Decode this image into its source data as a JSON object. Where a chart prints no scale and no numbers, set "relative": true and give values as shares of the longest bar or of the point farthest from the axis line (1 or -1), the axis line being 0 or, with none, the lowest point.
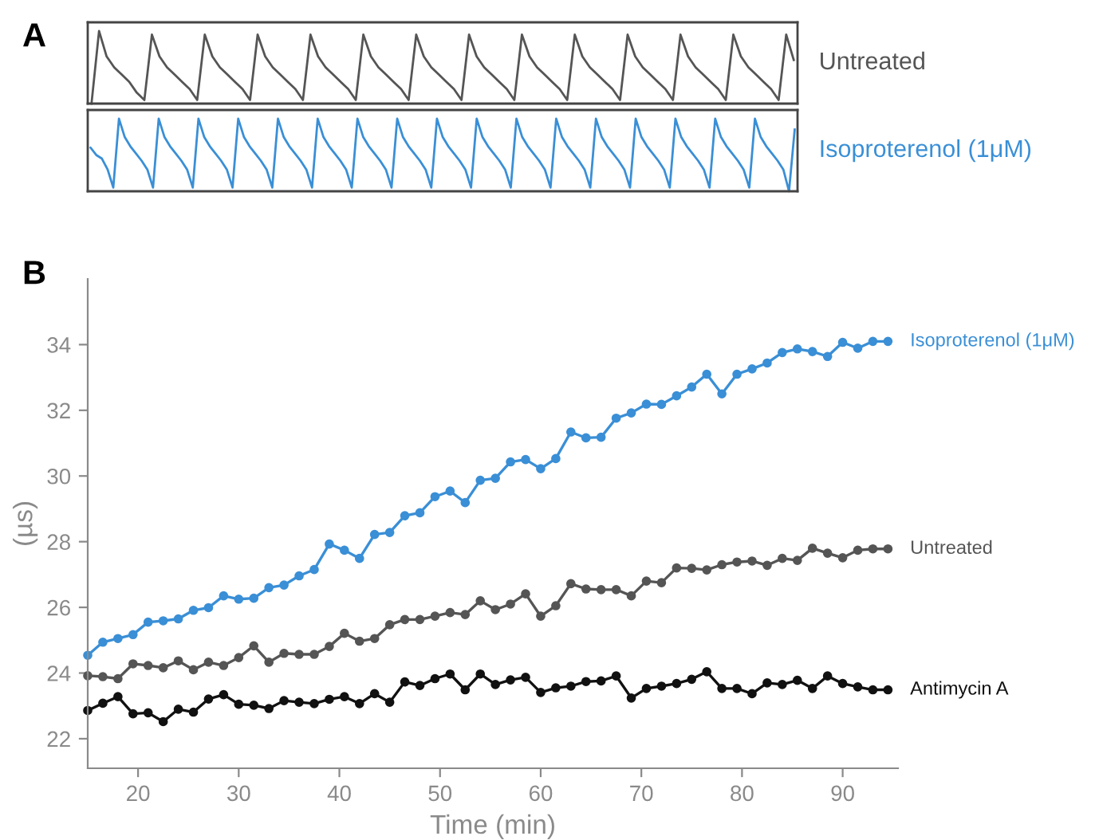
{
  "chart_data": [
    {
      "type": "line",
      "title": "A",
      "relative": true,
      "marker": "none",
      "categories": [
        null,
        null,
        null,
        null,
        null,
        null,
        null,
        null,
        null,
        null,
        null,
        null,
        null,
        null,
        null,
        null,
        null,
        null,
        null,
        null,
        null,
        null,
        null,
        null,
        null,
        null,
        null,
        null,
        null,
        null,
        null,
        null,
        null,
        null,
        null,
        null,
        null,
        null,
        null,
        null,
        null,
        null,
        null,
        null,
        null,
        null,
        null,
        null,
        null,
        null,
        null,
        null,
        null,
        null,
        null,
        null,
        null,
        null,
        null,
        null,
        null,
        null,
        null,
        null,
        null,
        null,
        null,
        null,
        null,
        null,
        null,
        null,
        null,
        null,
        null,
        null,
        null,
        null,
        null,
        null,
        null,
        null,
        null,
        null,
        null,
        null,
        null,
        null,
        null,
        null,
        null,
        null,
        null,
        null
      ],
      "series": [
        {
          "name": "Untreated",
          "color": "#555555",
          "values": [
            0.0,
            1.0,
            0.65,
            0.5,
            0.4,
            0.3,
            0.15,
            0.05,
            0.95,
            0.65,
            0.5,
            0.4,
            0.3,
            0.2,
            0.05,
            0.95,
            0.65,
            0.5,
            0.4,
            0.3,
            0.2,
            0.05,
            0.95,
            0.65,
            0.5,
            0.4,
            0.3,
            0.2,
            0.05,
            0.95,
            0.65,
            0.5,
            0.4,
            0.3,
            0.2,
            0.05,
            0.95,
            0.65,
            0.5,
            0.4,
            0.3,
            0.2,
            0.05,
            0.95,
            0.65,
            0.5,
            0.4,
            0.3,
            0.2,
            0.05,
            0.95,
            0.65,
            0.5,
            0.4,
            0.3,
            0.2,
            0.05,
            0.95,
            0.65,
            0.5,
            0.4,
            0.3,
            0.2,
            0.05,
            0.95,
            0.65,
            0.5,
            0.4,
            0.3,
            0.2,
            0.05,
            0.95,
            0.65,
            0.5,
            0.4,
            0.3,
            0.2,
            0.05,
            0.95,
            0.65,
            0.5,
            0.4,
            0.3,
            0.2,
            0.05,
            0.95,
            0.65,
            0.5,
            0.4,
            0.3,
            0.2,
            0.05,
            0.95,
            0.6
          ]
        }
      ]
    },
    {
      "type": "line",
      "relative": true,
      "marker": "none",
      "categories": [
        null,
        null,
        null,
        null,
        null,
        null,
        null,
        null,
        null,
        null,
        null,
        null,
        null,
        null,
        null,
        null,
        null,
        null,
        null,
        null,
        null,
        null,
        null,
        null,
        null,
        null,
        null,
        null,
        null,
        null,
        null,
        null,
        null,
        null,
        null,
        null,
        null,
        null,
        null,
        null,
        null,
        null,
        null,
        null,
        null,
        null,
        null,
        null,
        null,
        null,
        null,
        null,
        null,
        null,
        null,
        null,
        null,
        null,
        null,
        null,
        null,
        null,
        null,
        null,
        null,
        null,
        null,
        null,
        null,
        null,
        null,
        null,
        null,
        null,
        null,
        null,
        null,
        null,
        null,
        null,
        null,
        null,
        null,
        null,
        null,
        null,
        null,
        null,
        null,
        null,
        null,
        null,
        null,
        null,
        null,
        null,
        null,
        null,
        null,
        null,
        null,
        null,
        null,
        null,
        null,
        null,
        null,
        null,
        null,
        null,
        null,
        null,
        null,
        null,
        null,
        null,
        null,
        null,
        null,
        null,
        null,
        null,
        null,
        null,
        null
      ],
      "series": [
        {
          "name": "Isoproterenol (1μM)",
          "color": "#3a8fd6",
          "values": [
            0.6,
            0.5,
            0.45,
            0.3,
            0.05,
            1.0,
            0.75,
            0.62,
            0.52,
            0.42,
            0.3,
            0.05,
            1.0,
            0.75,
            0.62,
            0.52,
            0.42,
            0.3,
            0.05,
            1.0,
            0.75,
            0.62,
            0.52,
            0.42,
            0.3,
            0.05,
            1.0,
            0.75,
            0.62,
            0.52,
            0.42,
            0.3,
            0.05,
            1.0,
            0.75,
            0.62,
            0.52,
            0.42,
            0.3,
            0.05,
            1.0,
            0.75,
            0.62,
            0.52,
            0.42,
            0.3,
            0.05,
            1.0,
            0.75,
            0.62,
            0.52,
            0.42,
            0.3,
            0.05,
            1.0,
            0.75,
            0.62,
            0.52,
            0.42,
            0.3,
            0.05,
            1.0,
            0.75,
            0.62,
            0.52,
            0.42,
            0.3,
            0.05,
            1.0,
            0.75,
            0.62,
            0.52,
            0.42,
            0.3,
            0.05,
            1.0,
            0.75,
            0.62,
            0.52,
            0.42,
            0.3,
            0.05,
            1.0,
            0.75,
            0.62,
            0.52,
            0.42,
            0.3,
            0.05,
            1.0,
            0.75,
            0.62,
            0.52,
            0.42,
            0.3,
            0.05,
            1.0,
            0.75,
            0.62,
            0.52,
            0.42,
            0.3,
            0.05,
            1.0,
            0.75,
            0.62,
            0.52,
            0.42,
            0.3,
            0.05,
            1.0,
            0.75,
            0.62,
            0.52,
            0.42,
            0.3,
            0.05,
            1.0,
            0.75,
            0.62,
            0.52,
            0.42,
            0.3,
            0.0,
            0.85
          ]
        }
      ]
    },
    {
      "type": "line",
      "title": "B",
      "xlabel": "Time (min)",
      "ylabel": "(µs)",
      "marker": "circle",
      "grid": false,
      "x": [
        15,
        16.5,
        18,
        19.5,
        21,
        22.5,
        24,
        25.5,
        27,
        28.5,
        30,
        31.5,
        33,
        34.5,
        36,
        37.5,
        39,
        40.5,
        42,
        43.5,
        45,
        46.5,
        48,
        49.5,
        51,
        52.5,
        54,
        55.5,
        57,
        58.5,
        60,
        61.5,
        63,
        64.5,
        66,
        67.5,
        69,
        70.5,
        72,
        73.5,
        75,
        76.5,
        78,
        79.5,
        81,
        82.5,
        84,
        85.5,
        87,
        88.5,
        90,
        91.5,
        93,
        94.5
      ],
      "xlim": [
        15,
        95.5
      ],
      "xticks": [
        20,
        30,
        40,
        50,
        60,
        70,
        80,
        90
      ],
      "ylim": [
        21.1,
        36
      ],
      "yticks": [
        22,
        24,
        26,
        28,
        30,
        32,
        34
      ],
      "series": [
        {
          "name": "Isoproterenol (1μM)",
          "color": "#3a8fd6",
          "values": [
            24.54,
            24.94,
            25.05,
            25.17,
            25.55,
            25.59,
            25.65,
            25.91,
            25.99,
            26.35,
            26.25,
            26.28,
            26.6,
            26.68,
            26.96,
            27.15,
            27.93,
            27.74,
            27.49,
            28.22,
            28.28,
            28.79,
            28.88,
            29.37,
            29.54,
            29.19,
            29.87,
            29.93,
            30.43,
            30.5,
            30.22,
            30.53,
            31.34,
            31.16,
            31.18,
            31.76,
            31.92,
            32.19,
            32.18,
            32.44,
            32.71,
            33.1,
            32.5,
            33.1,
            33.26,
            33.44,
            33.76,
            33.87,
            33.79,
            33.64,
            34.07,
            33.89,
            34.1,
            34.1
          ]
        },
        {
          "name": "Untreated",
          "color": "#555555",
          "values": [
            23.92,
            23.89,
            23.83,
            24.28,
            24.23,
            24.16,
            24.37,
            24.1,
            24.33,
            24.23,
            24.47,
            24.83,
            24.33,
            24.6,
            24.57,
            24.57,
            24.81,
            25.21,
            24.97,
            25.05,
            25.47,
            25.63,
            25.63,
            25.73,
            25.84,
            25.78,
            26.2,
            25.93,
            26.1,
            26.41,
            25.73,
            26.05,
            26.72,
            26.56,
            26.54,
            26.54,
            26.35,
            26.8,
            26.75,
            27.2,
            27.19,
            27.14,
            27.3,
            27.38,
            27.41,
            27.28,
            27.49,
            27.43,
            27.8,
            27.65,
            27.51,
            27.74,
            27.78,
            27.78
          ]
        },
        {
          "name": "Antimycin A",
          "color": "#111111",
          "values": [
            22.86,
            23.08,
            23.28,
            22.76,
            22.79,
            22.52,
            22.9,
            22.81,
            23.21,
            23.34,
            23.05,
            23.02,
            22.92,
            23.16,
            23.11,
            23.07,
            23.2,
            23.28,
            23.07,
            23.37,
            23.11,
            23.73,
            23.62,
            23.83,
            23.97,
            23.49,
            23.97,
            23.65,
            23.79,
            23.87,
            23.41,
            23.55,
            23.6,
            23.74,
            23.76,
            23.91,
            23.24,
            23.53,
            23.6,
            23.68,
            23.81,
            24.04,
            23.53,
            23.53,
            23.37,
            23.7,
            23.65,
            23.78,
            23.53,
            23.91,
            23.68,
            23.58,
            23.49,
            23.49
          ]
        }
      ]
    }
  ]
}
